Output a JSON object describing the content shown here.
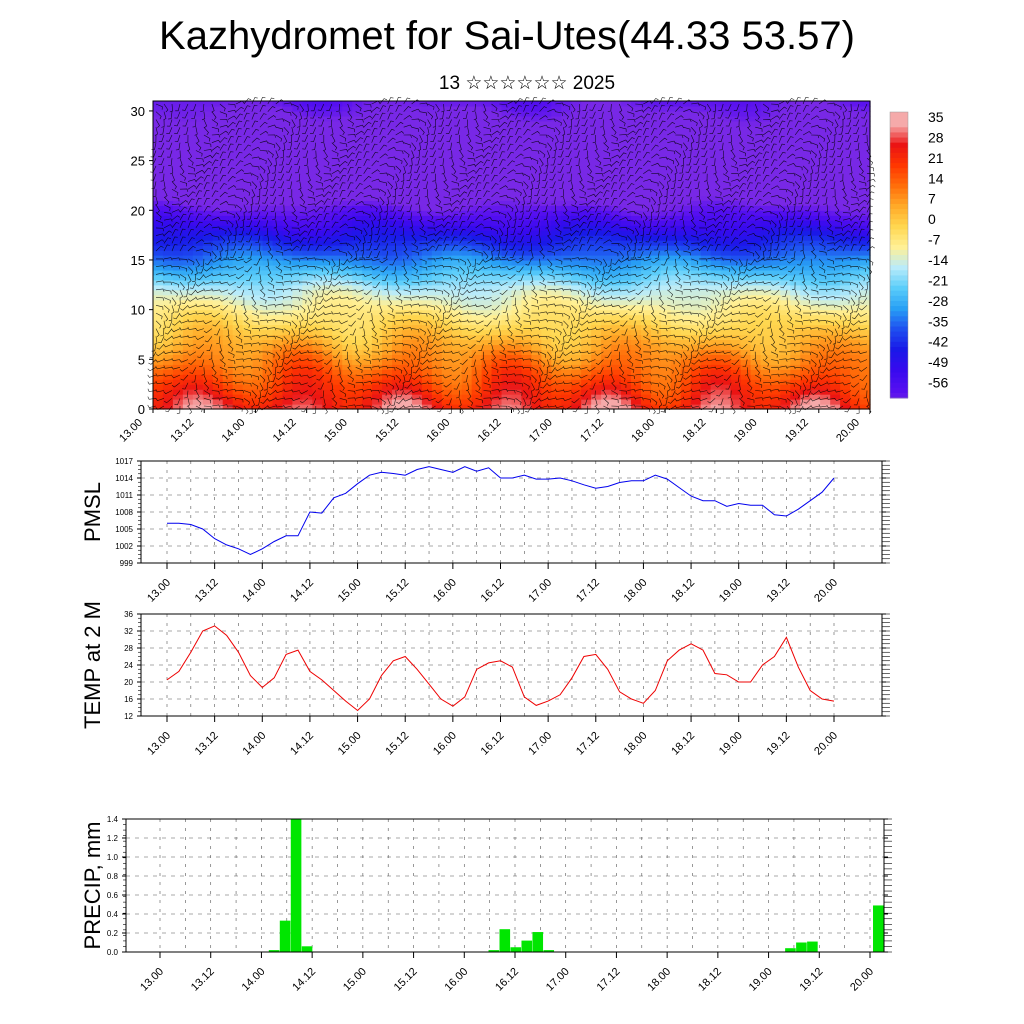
{
  "title": "Kazhydromet for Sai-Utes(44.33 53.57)",
  "subtitle": "13 ☆☆☆☆☆☆ 2025",
  "chart_data": [
    {
      "type": "heatmap",
      "name": "time-height cross-section",
      "x_ticks": [
        "13.00",
        "13.12",
        "14.00",
        "14.12",
        "15.00",
        "15.12",
        "16.00",
        "16.12",
        "17.00",
        "17.12",
        "18.00",
        "18.12",
        "19.00",
        "19.12",
        "20.00"
      ],
      "y_ticks": [
        0,
        5,
        10,
        15,
        20,
        25,
        30
      ],
      "ylim": [
        0,
        31
      ],
      "colorbar": {
        "labels": [
          35,
          28,
          21,
          14,
          7,
          0,
          -7,
          -14,
          -21,
          -28,
          -35,
          -42,
          -49,
          -56
        ],
        "colors": [
          "#f2b8b8",
          "#ee2020",
          "#ff3000",
          "#ff7000",
          "#ffa020",
          "#ffd050",
          "#fff0a0",
          "#c0ecff",
          "#60d0ff",
          "#20a8f8",
          "#2060f0",
          "#1020e8",
          "#4010f0",
          "#7030f0"
        ]
      },
      "overlay": "wind barbs"
    },
    {
      "type": "line",
      "ylabel": "PMSL",
      "ylim": [
        999,
        1017
      ],
      "y_ticks": [
        999,
        1002,
        1005,
        1008,
        1011,
        1014,
        1017
      ],
      "x_ticks": [
        "13.00",
        "13.12",
        "14.00",
        "14.12",
        "15.00",
        "15.12",
        "16.00",
        "16.12",
        "17.00",
        "17.12",
        "18.00",
        "18.12",
        "19.00",
        "19.12",
        "20.00"
      ],
      "color": "#0000ee",
      "values": [
        1006,
        1006,
        1005.8,
        1005,
        1003.3,
        1002.2,
        1001.5,
        1000.5,
        1001.5,
        1002.8,
        1003.8,
        1003.8,
        1008,
        1007.8,
        1010.5,
        1011.3,
        1013,
        1014.5,
        1015,
        1014.8,
        1014.5,
        1015.5,
        1016,
        1015.5,
        1015,
        1016,
        1015.2,
        1015.8,
        1014,
        1014,
        1014.5,
        1013.8,
        1013.8,
        1014,
        1013.5,
        1012.8,
        1012.2,
        1012.5,
        1013.2,
        1013.5,
        1013.5,
        1014.5,
        1013.8,
        1012.3,
        1010.8,
        1010,
        1010,
        1009,
        1009.5,
        1009.2,
        1009.2,
        1007.5,
        1007.3,
        1008.5,
        1010,
        1011.5,
        1014
      ]
    },
    {
      "type": "line",
      "ylabel": "TEMP at 2 M",
      "ylim": [
        12,
        36
      ],
      "y_ticks": [
        12,
        16,
        20,
        24,
        28,
        32,
        36
      ],
      "x_ticks": [
        "13.00",
        "13.12",
        "14.00",
        "14.12",
        "15.00",
        "15.12",
        "16.00",
        "16.12",
        "17.00",
        "17.12",
        "18.00",
        "18.12",
        "19.00",
        "19.12",
        "20.00"
      ],
      "color": "#ee0000",
      "values": [
        20.5,
        22.5,
        27,
        32,
        33.2,
        31,
        27,
        21.5,
        18.7,
        21,
        26.5,
        27.5,
        22.5,
        20.5,
        18,
        15.5,
        13.3,
        16,
        21.5,
        25,
        26,
        23,
        19.5,
        16,
        14.3,
        16.5,
        23,
        24.5,
        25,
        23.5,
        16.5,
        14.5,
        15.5,
        17,
        21,
        26,
        26.5,
        23,
        17.7,
        16,
        15,
        18,
        25,
        27.5,
        29,
        27.5,
        22,
        21.7,
        20,
        20,
        24,
        26,
        30.5,
        23.5,
        18,
        16,
        15.5
      ]
    },
    {
      "type": "bar",
      "ylabel": "PRECIP, mm",
      "ylim": [
        0,
        1.4
      ],
      "y_ticks": [
        0.0,
        0.2,
        0.4,
        0.6,
        0.8,
        1.0,
        1.2,
        1.4
      ],
      "x_ticks": [
        "13.00",
        "13.12",
        "14.00",
        "14.12",
        "15.00",
        "15.12",
        "16.00",
        "16.12",
        "17.00",
        "17.12",
        "18.00",
        "18.12",
        "19.00",
        "19.12",
        "20.00"
      ],
      "color": "#00e600",
      "values": [
        0,
        0,
        0,
        0,
        0,
        0,
        0,
        0,
        0,
        0,
        0,
        0,
        0,
        0.02,
        0.33,
        1.4,
        0.06,
        0,
        0,
        0,
        0,
        0,
        0,
        0,
        0,
        0,
        0,
        0,
        0,
        0,
        0,
        0,
        0,
        0.02,
        0.24,
        0.05,
        0.12,
        0.21,
        0.02,
        0,
        0,
        0,
        0,
        0,
        0,
        0,
        0,
        0,
        0,
        0,
        0,
        0,
        0,
        0,
        0,
        0,
        0,
        0,
        0,
        0,
        0.04,
        0.1,
        0.11,
        0,
        0,
        0,
        0,
        0,
        0.49
      ]
    }
  ]
}
